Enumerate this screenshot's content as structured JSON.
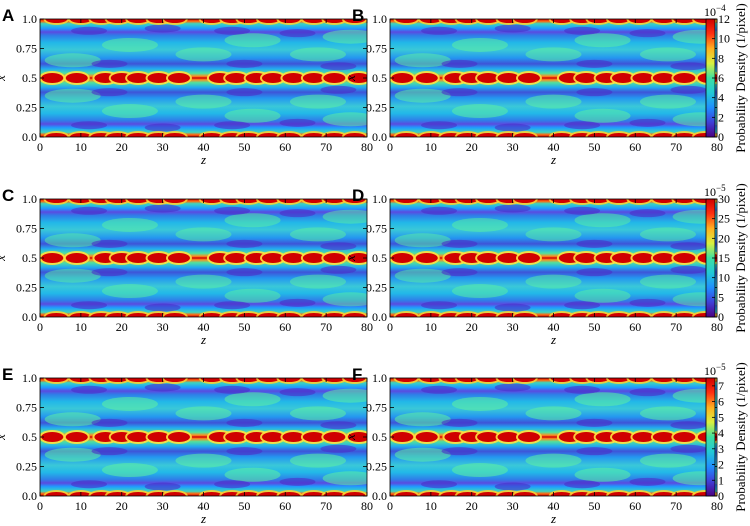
{
  "chart_data": {
    "type": "heatmap",
    "layout": "3 rows x 2 columns of panels, each row shares a colorbar on the right",
    "x_axis": {
      "label": "z",
      "range": [
        0,
        80
      ],
      "ticks": [
        0,
        10,
        20,
        30,
        40,
        50,
        60,
        70,
        80
      ]
    },
    "y_axis": {
      "label": "x",
      "range": [
        0.0,
        1.0
      ],
      "ticks": [
        "0.0",
        "0.25",
        "0.5",
        "0.75",
        "1.0"
      ]
    },
    "colormap": [
      "#4b0082",
      "#3f3fd8",
      "#1f8fff",
      "#22c9d6",
      "#3ee0a0",
      "#d8f040",
      "#ffb020",
      "#ff3010",
      "#d00000"
    ],
    "colorbar_label": "Probability Density (1/pixel)",
    "panels": [
      {
        "letter": "A",
        "row": 0,
        "col": 0,
        "intensity": 0.96
      },
      {
        "letter": "B",
        "row": 0,
        "col": 1,
        "intensity": 0.96
      },
      {
        "letter": "C",
        "row": 1,
        "col": 0,
        "intensity": 0.9
      },
      {
        "letter": "D",
        "row": 1,
        "col": 1,
        "intensity": 0.9
      },
      {
        "letter": "E",
        "row": 2,
        "col": 0,
        "intensity": 1.0
      },
      {
        "letter": "F",
        "row": 2,
        "col": 1,
        "intensity": 1.0
      }
    ],
    "colorbars": [
      {
        "row": 0,
        "exponent_base": "10",
        "exponent": "−4",
        "vmax": 12,
        "ticks": [
          0,
          2,
          4,
          6,
          8,
          10,
          12
        ]
      },
      {
        "row": 1,
        "exponent_base": "10",
        "exponent": "−5",
        "vmax": 30,
        "ticks": [
          0,
          5,
          10,
          15,
          20,
          25,
          30
        ]
      },
      {
        "row": 2,
        "exponent_base": "10",
        "exponent": "−5",
        "vmax": 7.5,
        "ticks": [
          0,
          1,
          2,
          3,
          4,
          5,
          6,
          7
        ]
      }
    ]
  }
}
